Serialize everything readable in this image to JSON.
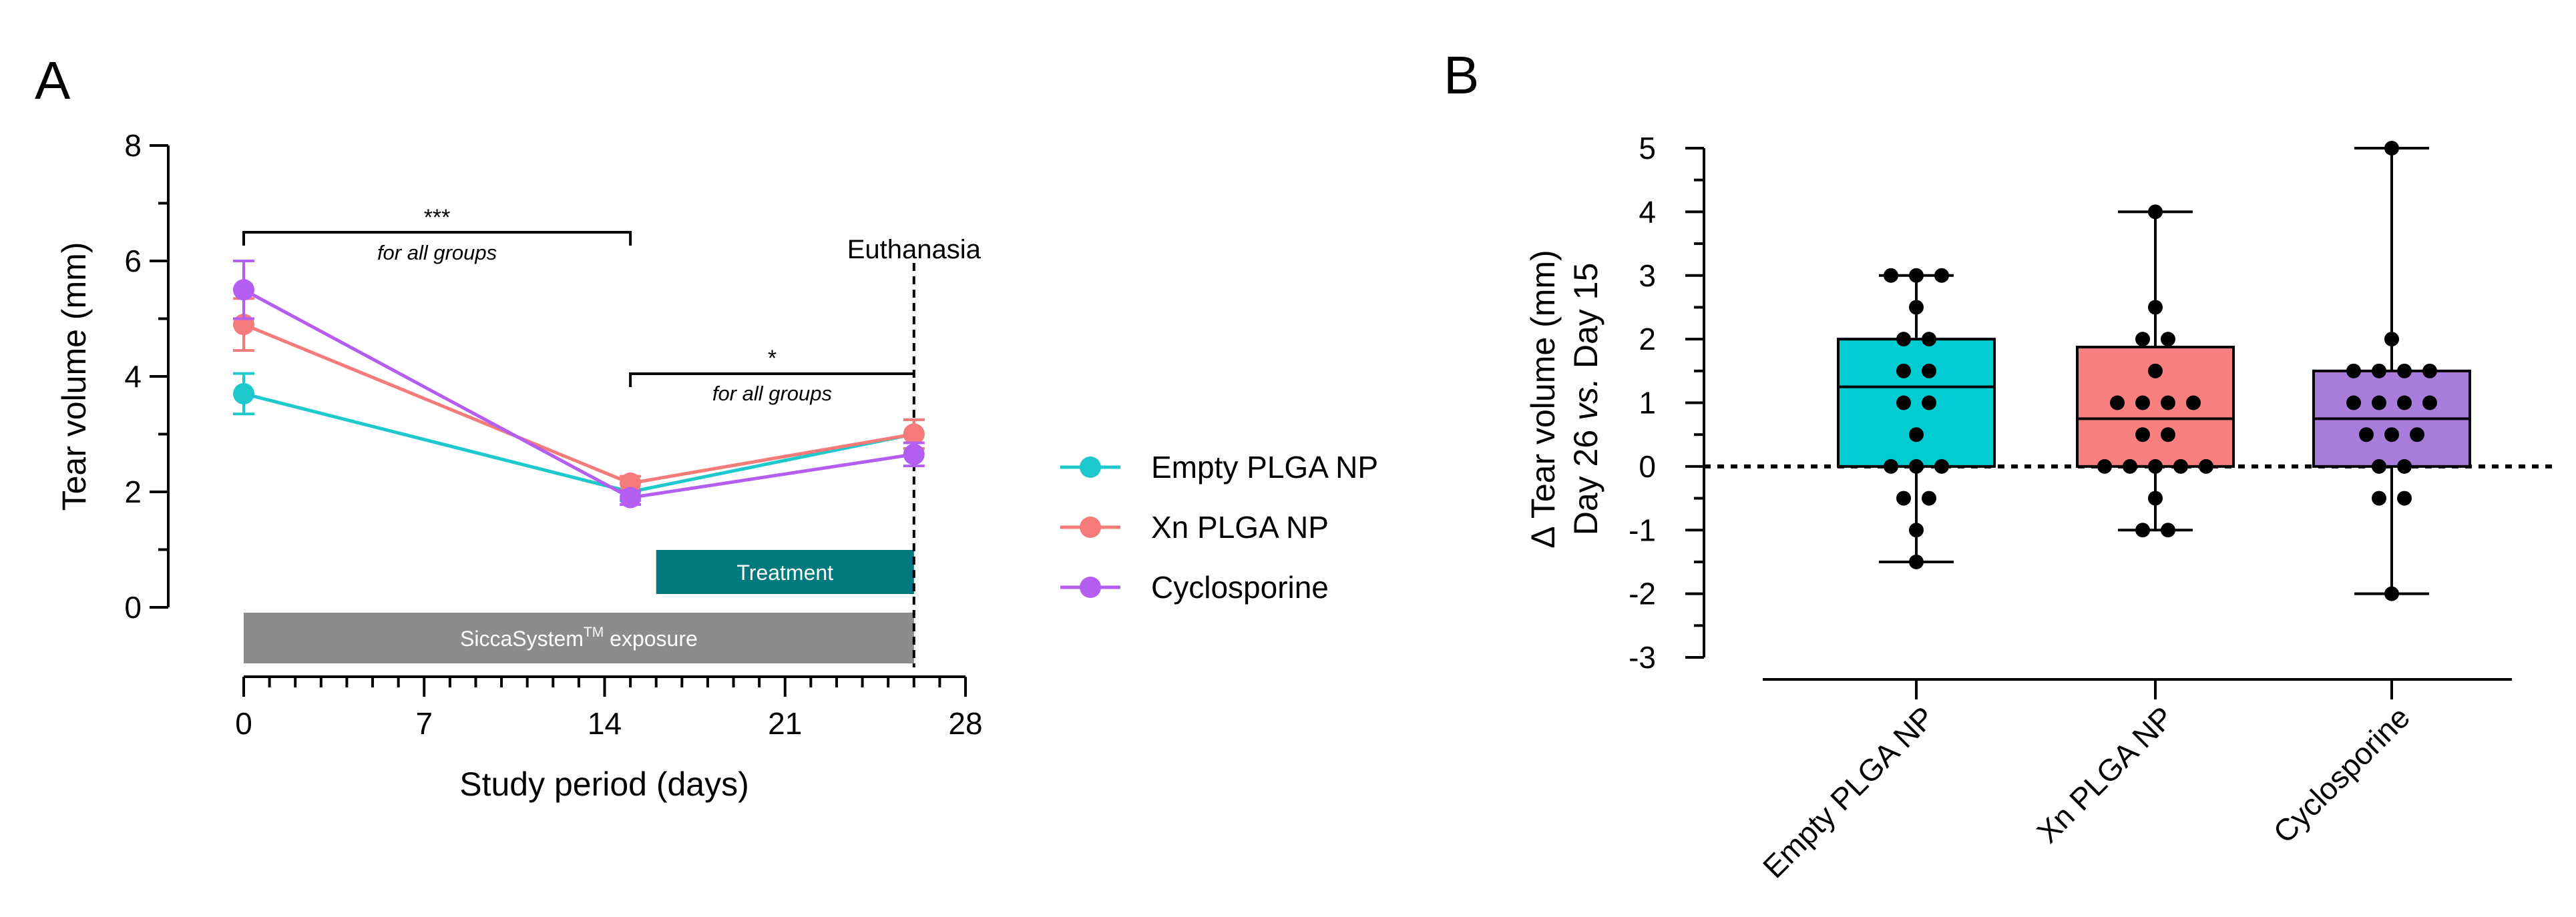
{
  "panels": {
    "a_label": "A",
    "b_label": "B"
  },
  "chart_data": [
    {
      "type": "line",
      "panel": "A",
      "xlabel": "Study period (days)",
      "ylabel": "Tear volume (mm)",
      "xlim": [
        0,
        28
      ],
      "ylim": [
        0,
        8
      ],
      "xticks": [
        0,
        7,
        14,
        21,
        28
      ],
      "yticks": [
        0,
        2,
        4,
        6,
        8
      ],
      "x": [
        0,
        15,
        26
      ],
      "series": [
        {
          "name": "Empty PLGA NP",
          "color": "#1ec8cc",
          "values": [
            3.7,
            2.0,
            3.0
          ],
          "errors": [
            0.35,
            0.15,
            0.25
          ]
        },
        {
          "name": "Xn PLGA NP",
          "color": "#f57b7b",
          "values": [
            4.9,
            2.15,
            3.0
          ],
          "errors": [
            0.45,
            0.12,
            0.25
          ]
        },
        {
          "name": "Cyclosporine",
          "color": "#b35ef0",
          "values": [
            5.5,
            1.9,
            2.65
          ],
          "errors": [
            0.5,
            0.12,
            0.2
          ]
        }
      ],
      "annotations": {
        "sig1": {
          "stars": "***",
          "text": "for all groups",
          "from_day": 0,
          "to_day": 15
        },
        "sig2": {
          "stars": "*",
          "text": "for all groups",
          "from_day": 15,
          "to_day": 26
        },
        "euthanasia_label": "Euthanasia",
        "euthanasia_day": 26,
        "treatment": {
          "label": "Treatment",
          "from_day": 16,
          "to_day": 26,
          "color": "#00797c"
        },
        "exposure": {
          "label": "SiccaSystem",
          "superscript": "TM",
          "suffix": " exposure",
          "from_day": 0,
          "to_day": 26,
          "color": "#8c8c8c"
        }
      },
      "legend_position": "right"
    },
    {
      "type": "box",
      "panel": "B",
      "ylabel_line1": "Δ Tear volume (mm)",
      "ylabel_line2_a": "Day 26 ",
      "ylabel_line2_italic": "vs.",
      "ylabel_line2_b": " Day 15",
      "ylim": [
        -3,
        5
      ],
      "yticks": [
        -3,
        -2,
        -1,
        0,
        1,
        2,
        3,
        4,
        5
      ],
      "categories": [
        "Empty PLGA NP",
        "Xn PLGA NP",
        "Cyclosporine"
      ],
      "boxes": [
        {
          "color": "#00ccd1",
          "min": -1.5,
          "q1": 0,
          "median": 1.25,
          "q3": 2,
          "max": 3,
          "points": [
            3,
            3,
            3,
            2.5,
            2,
            2,
            1.5,
            1.5,
            1,
            1,
            0.5,
            0,
            0,
            0,
            -0.5,
            -0.5,
            -1,
            -1.5
          ]
        },
        {
          "color": "#f98080",
          "min": -1,
          "q1": 0,
          "median": 0.75,
          "q3": 1.875,
          "max": 4,
          "points": [
            4,
            2.5,
            2,
            2,
            1.5,
            1,
            1,
            1,
            1,
            0.5,
            0.5,
            0,
            0,
            0,
            0,
            0,
            -0.5,
            -1,
            -1
          ]
        },
        {
          "color": "#a97ddb",
          "min": -2,
          "q1": 0,
          "median": 0.75,
          "q3": 1.5,
          "max": 5,
          "points": [
            5,
            2,
            1.5,
            1.5,
            1.5,
            1.5,
            1,
            1,
            1,
            1,
            0.5,
            0.5,
            0.5,
            0,
            0,
            -0.5,
            -0.5,
            -2
          ]
        }
      ]
    }
  ]
}
